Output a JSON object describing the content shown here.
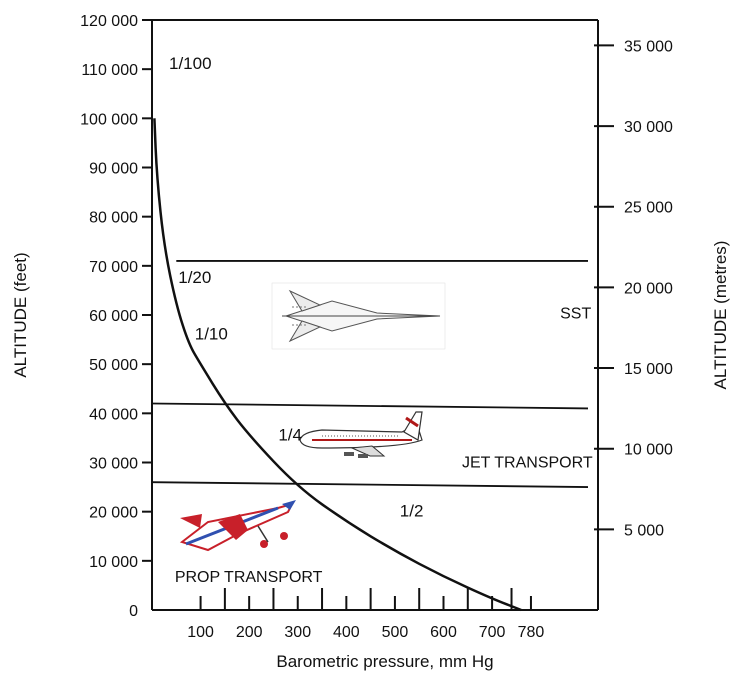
{
  "chart_data": {
    "type": "line",
    "xlabel": "Barometric pressure, mm Hg",
    "ylabel": "ALTITUDE (feet)",
    "y2label": "ALTITUDE  (metres)",
    "x_ticks": [
      100,
      200,
      300,
      400,
      500,
      600,
      700,
      780
    ],
    "x_tick_labels": [
      "100",
      "200",
      "300",
      "400",
      "500",
      "600",
      "700",
      "780"
    ],
    "x_ticks_unlabeled": [
      150,
      250,
      350,
      450,
      550,
      650,
      740
    ],
    "y_ticks": [
      0,
      10000,
      20000,
      30000,
      40000,
      50000,
      60000,
      70000,
      80000,
      90000,
      100000,
      110000,
      120000
    ],
    "y_tick_labels": [
      "0",
      "10 000",
      "20 000",
      "30 000",
      "40 000",
      "50 000",
      "60 000",
      "70 000",
      "80 000",
      "90 000",
      "100 000",
      "110 000",
      "120 000"
    ],
    "y2_ticks": [
      5000,
      10000,
      15000,
      20000,
      25000,
      30000,
      35000
    ],
    "y2_tick_labels": [
      "5 000",
      "10 000",
      "15 000",
      "20 000",
      "25 000",
      "30 000",
      "35 000"
    ],
    "xlim": [
      0,
      918
    ],
    "ylim": [
      0,
      120000
    ],
    "y2lim": [
      0,
      36576
    ],
    "series": [
      {
        "x": [
          760,
          700,
          600,
          500,
          400,
          300,
          200,
          150,
          100,
          76,
          50,
          25,
          10,
          5
        ],
        "y": [
          0,
          2300,
          6800,
          12000,
          18000,
          25000,
          35500,
          42000,
          50000,
          54000,
          62000,
          74000,
          88000,
          100000
        ]
      }
    ],
    "band_lines": [
      {
        "x": [
          50,
          918
        ],
        "y": [
          71000,
          71000
        ]
      },
      {
        "x": [
          0,
          918
        ],
        "y": [
          42000,
          41000
        ]
      },
      {
        "x": [
          0,
          918
        ],
        "y": [
          26000,
          25000
        ]
      }
    ],
    "annotations": [
      {
        "text": "1/100",
        "x": 35,
        "y": 110000
      },
      {
        "text": "1/20",
        "x": 54,
        "y": 66500
      },
      {
        "text": "1/10",
        "x": 88,
        "y": 55000
      },
      {
        "text": "1/4",
        "x": 260,
        "y": 34500
      },
      {
        "text": "1/2",
        "x": 510,
        "y": 19000
      },
      {
        "text": "SST",
        "x": 840,
        "y": 59300
      },
      {
        "text": "JET TRANSPORT",
        "x": 638,
        "y": 29000
      },
      {
        "text": "PROP TRANSPORT",
        "x": 47,
        "y": 5700
      }
    ],
    "grid": false
  },
  "aircraft": [
    {
      "name": "sst-aircraft-icon"
    },
    {
      "name": "jet-transport-icon"
    },
    {
      "name": "prop-transport-icon"
    }
  ],
  "colors": {
    "axis": "#111111",
    "curve": "#111111",
    "prop_plane_red": "#c8202a",
    "prop_plane_blue": "#3050b0",
    "jet_stripe_red": "#b01818"
  }
}
